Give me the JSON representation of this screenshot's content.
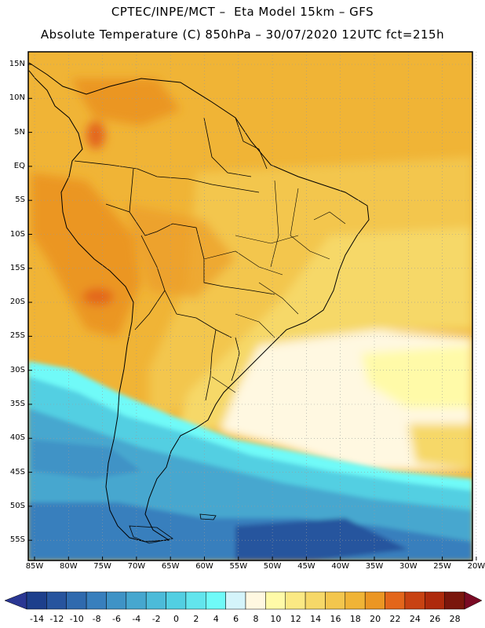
{
  "title_line1": "CPTEC/INPE/MCT –  Eta Model 15km – GFS",
  "title_line2": "Absolute Temperature (C) 850hPa – 30/07/2020 12UTC fct=215h",
  "lat_labels": [
    "15N",
    "10N",
    "5N",
    "EQ",
    "5S",
    "10S",
    "15S",
    "20S",
    "25S",
    "30S",
    "35S",
    "40S",
    "45S",
    "50S",
    "55S"
  ],
  "lon_labels": [
    "85W",
    "80W",
    "75W",
    "70W",
    "65W",
    "60W",
    "55W",
    "50W",
    "45W",
    "40W",
    "35W",
    "30W",
    "25W",
    "20W"
  ],
  "colorbar": {
    "labels": [
      "-14",
      "-12",
      "-10",
      "-8",
      "-6",
      "-4",
      "-2",
      "0",
      "2",
      "4",
      "6",
      "8",
      "10",
      "12",
      "14",
      "16",
      "18",
      "20",
      "22",
      "24",
      "26",
      "28"
    ],
    "colors": [
      "#1d3f8c",
      "#27549e",
      "#2f6aae",
      "#387fbd",
      "#3f93c6",
      "#46a7cf",
      "#4cbbd9",
      "#52cfe2",
      "#62e5ed",
      "#6ffaf8",
      "#d4f4fa",
      "#fff8e1",
      "#fffaa8",
      "#fbe984",
      "#f6d868",
      "#f3c64d",
      "#f0b436",
      "#eb9623",
      "#e3661b",
      "#c84212",
      "#ae2a0c",
      "#7a160c"
    ],
    "under_color": "#2a3793",
    "over_color": "#7a0a24"
  }
}
